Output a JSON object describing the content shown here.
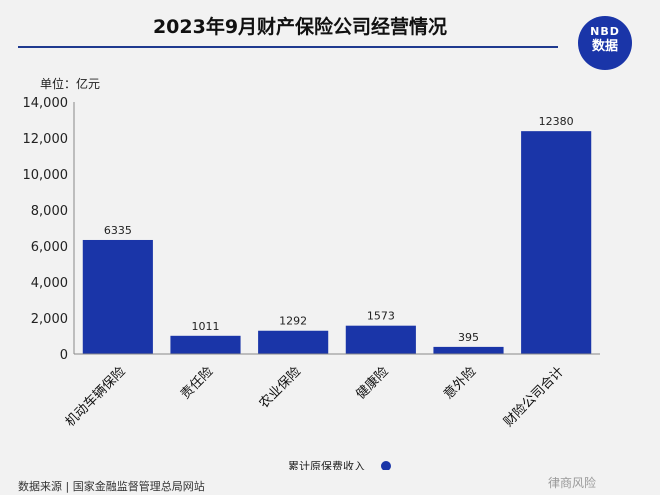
{
  "title": "2023年9月财产保险公司经营情况",
  "logo": {
    "line1": "NBD",
    "line2": "数据"
  },
  "unit_label": "单位：亿元",
  "source": "数据来源 | 国家金融监督管理总局网站",
  "corner_mark": "律商风险",
  "colors": {
    "bar": "#1a35a8",
    "accent": "#1f3a8f"
  },
  "chart_data": {
    "type": "bar",
    "categories": [
      "机动车辆保险",
      "责任险",
      "农业保险",
      "健康险",
      "意外险",
      "财险公司合计"
    ],
    "series": [
      {
        "name": "累计原保费收入",
        "values": [
          6335,
          1011,
          1292,
          1573,
          395,
          12380
        ]
      }
    ],
    "data_labels": [
      "6335",
      "1011",
      "1292",
      "1573",
      "395",
      "12380"
    ],
    "y_ticks": [
      0,
      2000,
      4000,
      6000,
      8000,
      10000,
      12000,
      14000
    ],
    "y_tick_labels": [
      "0",
      "2,000",
      "4,000",
      "6,000",
      "8,000",
      "10,000",
      "12,000",
      "14,000"
    ],
    "ylim": [
      0,
      14000
    ],
    "grid": false,
    "legend_position": "bottom"
  }
}
